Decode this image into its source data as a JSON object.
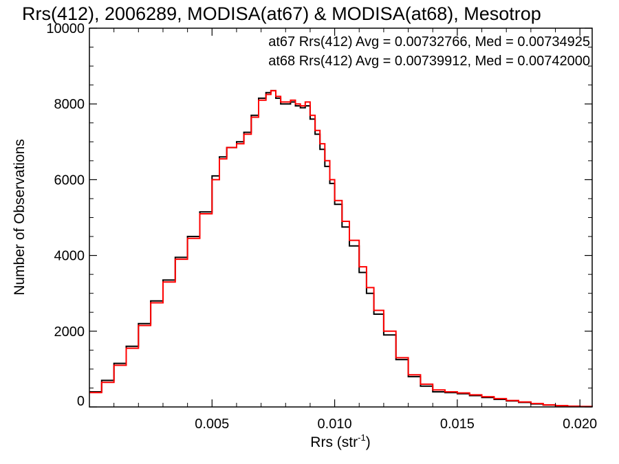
{
  "chart_data": {
    "type": "line",
    "style": "step",
    "title": "Rrs(412), 2006289, MODISA(at67) & MODISA(at68), Mesotrop",
    "xlabel": "Rrs (str",
    "xlabel_sup": "-1",
    "xlabel_close": ")",
    "ylabel": "Number of Observations",
    "xlim": [
      0.0,
      0.0205
    ],
    "ylim": [
      0,
      10000
    ],
    "x_ticks": [
      {
        "value": 0.005,
        "label": "0.005"
      },
      {
        "value": 0.01,
        "label": "0.010"
      },
      {
        "value": 0.015,
        "label": "0.015"
      },
      {
        "value": 0.02,
        "label": "0.020"
      }
    ],
    "y_ticks": [
      {
        "value": 0,
        "label": "0"
      },
      {
        "value": 2000,
        "label": "2000"
      },
      {
        "value": 4000,
        "label": "4000"
      },
      {
        "value": 6000,
        "label": "6000"
      },
      {
        "value": 8000,
        "label": "8000"
      },
      {
        "value": 10000,
        "label": "10000"
      }
    ],
    "legend_position": "top-right",
    "series": [
      {
        "legend_text": "at67 Rrs(412) Avg = 0.00732766, Med = 0.00734925",
        "color": "#000000",
        "x": [
          0.0,
          0.0005,
          0.001,
          0.0015,
          0.002,
          0.0025,
          0.003,
          0.0035,
          0.004,
          0.0045,
          0.005,
          0.0053,
          0.0056,
          0.006,
          0.0063,
          0.0066,
          0.0069,
          0.0072,
          0.0074,
          0.0076,
          0.0078,
          0.008,
          0.0082,
          0.0084,
          0.0086,
          0.0088,
          0.009,
          0.0092,
          0.0094,
          0.0096,
          0.0098,
          0.01,
          0.0103,
          0.0106,
          0.011,
          0.0113,
          0.0116,
          0.012,
          0.0125,
          0.013,
          0.0135,
          0.014,
          0.0145,
          0.015,
          0.0155,
          0.016,
          0.0165,
          0.017,
          0.0175,
          0.018,
          0.0185,
          0.019,
          0.0195,
          0.02,
          0.0205
        ],
        "y": [
          400,
          700,
          1150,
          1600,
          2200,
          2800,
          3350,
          3950,
          4500,
          5150,
          6100,
          6600,
          6850,
          7000,
          7250,
          7700,
          8150,
          8300,
          8350,
          8150,
          8000,
          8000,
          8050,
          7950,
          7900,
          7950,
          7600,
          7200,
          6800,
          6350,
          5900,
          5350,
          4750,
          4250,
          3550,
          3000,
          2450,
          1900,
          1250,
          800,
          550,
          400,
          380,
          350,
          300,
          250,
          200,
          160,
          120,
          80,
          50,
          30,
          15,
          10,
          5
        ]
      },
      {
        "legend_text": "at68 Rrs(412) Avg = 0.00739912, Med = 0.00742000",
        "color": "#ff0000",
        "x": [
          0.0,
          0.0005,
          0.001,
          0.0015,
          0.002,
          0.0025,
          0.003,
          0.0035,
          0.004,
          0.0045,
          0.005,
          0.0053,
          0.0056,
          0.006,
          0.0063,
          0.0066,
          0.0069,
          0.0072,
          0.0074,
          0.0076,
          0.0078,
          0.008,
          0.0082,
          0.0084,
          0.0086,
          0.0088,
          0.009,
          0.0092,
          0.0094,
          0.0096,
          0.0098,
          0.01,
          0.0103,
          0.0106,
          0.011,
          0.0113,
          0.0116,
          0.012,
          0.0125,
          0.013,
          0.0135,
          0.014,
          0.0145,
          0.015,
          0.0155,
          0.016,
          0.0165,
          0.017,
          0.0175,
          0.018,
          0.0185,
          0.019,
          0.0195,
          0.02,
          0.0205
        ],
        "y": [
          380,
          650,
          1100,
          1550,
          2150,
          2750,
          3300,
          3900,
          4450,
          5100,
          6000,
          6550,
          6850,
          6950,
          7200,
          7650,
          8100,
          8250,
          8350,
          8200,
          8050,
          8050,
          8100,
          8000,
          7950,
          8050,
          7700,
          7300,
          6950,
          6500,
          6000,
          5450,
          4900,
          4400,
          3700,
          3150,
          2550,
          2000,
          1300,
          850,
          600,
          450,
          400,
          370,
          320,
          270,
          220,
          170,
          130,
          90,
          55,
          35,
          20,
          10,
          5
        ]
      }
    ]
  }
}
